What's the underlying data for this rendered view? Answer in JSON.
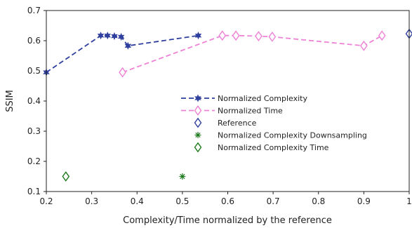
{
  "chart_data": {
    "type": "scatter",
    "xlabel": "Complexity/Time normalized by the reference",
    "ylabel": "SSIM",
    "xlim": [
      0.2,
      1.0
    ],
    "ylim": [
      0.1,
      0.7
    ],
    "xticks": [
      0.2,
      0.3,
      0.4,
      0.5,
      0.6,
      0.7,
      0.8,
      0.9,
      1.0
    ],
    "xtick_labels": [
      "0.2",
      "0.3",
      "0.4",
      "0.5",
      "0.6",
      "0.7",
      "0.8",
      "0.9",
      "1"
    ],
    "yticks": [
      0.1,
      0.2,
      0.3,
      0.4,
      0.5,
      0.6,
      0.7
    ],
    "ytick_labels": [
      "0.1",
      "0.2",
      "0.3",
      "0.4",
      "0.5",
      "0.6",
      "0.7"
    ],
    "grid": false,
    "legend_position": "center-right",
    "series": [
      {
        "name": "Normalized Complexity",
        "style": "dashed-line-filled-star",
        "color": "#2f3f9e",
        "x": [
          0.2,
          0.32,
          0.335,
          0.35,
          0.365,
          0.38,
          0.535
        ],
        "y": [
          0.495,
          0.617,
          0.617,
          0.615,
          0.613,
          0.583,
          0.617
        ]
      },
      {
        "name": "Normalized Time",
        "style": "dashed-line-diamond",
        "color": "#ee82d6",
        "x": [
          0.368,
          0.588,
          0.618,
          0.668,
          0.698,
          0.9,
          0.94
        ],
        "y": [
          0.495,
          0.617,
          0.617,
          0.615,
          0.613,
          0.583,
          0.617
        ]
      },
      {
        "name": "Reference",
        "style": "diamond-marker",
        "color": "#2f3f9e",
        "x": [
          1.0
        ],
        "y": [
          0.623
        ]
      },
      {
        "name": "Normalized Complexity Downsampling",
        "style": "star-marker",
        "color": "#1e7a1e",
        "x": [
          0.5
        ],
        "y": [
          0.15
        ]
      },
      {
        "name": "Normalized Complexity Time",
        "style": "diamond-marker",
        "color": "#1e7a1e",
        "x": [
          0.243
        ],
        "y": [
          0.15
        ]
      }
    ]
  }
}
